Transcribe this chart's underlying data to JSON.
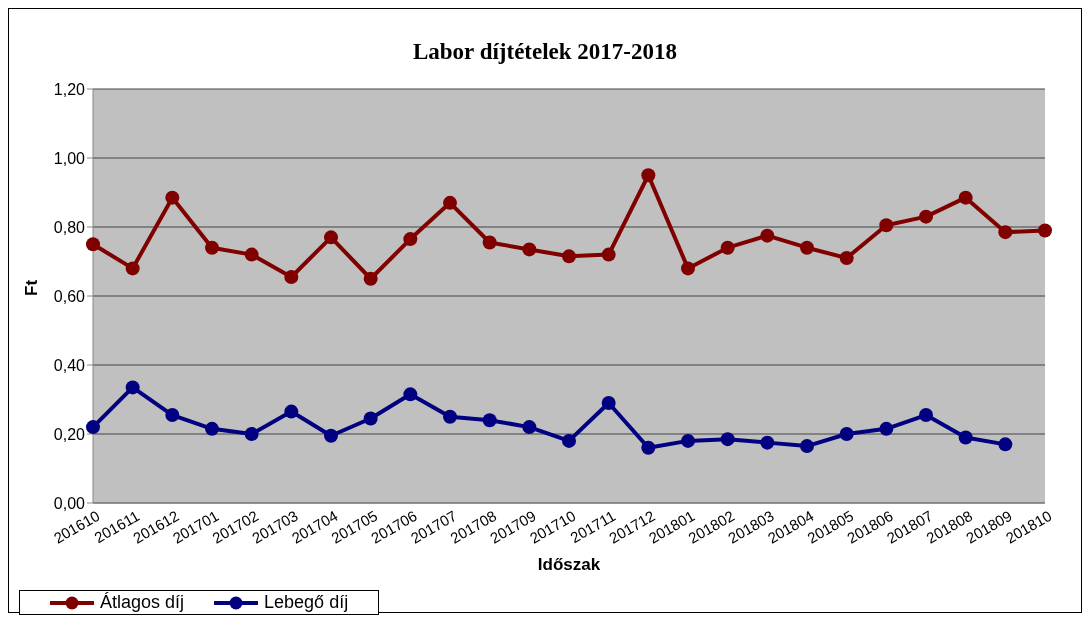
{
  "chart_data": {
    "type": "line",
    "title": "Labor díjtételek 2017-2018",
    "xlabel": "Időszak",
    "ylabel": "Ft",
    "categories": [
      "201610",
      "201611",
      "201612",
      "201701",
      "201702",
      "201703",
      "201704",
      "201705",
      "201706",
      "201707",
      "201708",
      "201709",
      "201710",
      "201711",
      "201712",
      "201801",
      "201802",
      "201803",
      "201804",
      "201805",
      "201806",
      "201807",
      "201808",
      "201809",
      "201810"
    ],
    "series": [
      {
        "name": "Átlagos díj",
        "color": "#800000",
        "values": [
          0.75,
          0.68,
          0.885,
          0.74,
          0.72,
          0.655,
          0.77,
          0.65,
          0.765,
          0.87,
          0.755,
          0.735,
          0.715,
          0.72,
          0.95,
          0.68,
          0.74,
          0.775,
          0.74,
          0.71,
          0.805,
          0.83,
          0.885,
          0.785,
          0.79
        ]
      },
      {
        "name": "Lebegő díj",
        "color": "#000080",
        "values": [
          0.22,
          0.335,
          0.255,
          0.215,
          0.2,
          0.265,
          0.195,
          0.245,
          0.315,
          0.25,
          0.24,
          0.22,
          0.18,
          0.29,
          0.16,
          0.18,
          0.185,
          0.175,
          0.165,
          0.2,
          0.215,
          0.255,
          0.19,
          0.17,
          null
        ]
      }
    ],
    "ylim": [
      0,
      1.2
    ],
    "yticks": [
      {
        "value": 0,
        "label": "0,00"
      },
      {
        "value": 0.2,
        "label": "0,20"
      },
      {
        "value": 0.4,
        "label": "0,40"
      },
      {
        "value": 0.6,
        "label": "0,60"
      },
      {
        "value": 0.8,
        "label": "0,80"
      },
      {
        "value": 1,
        "label": "1,00"
      },
      {
        "value": 1.2,
        "label": "1,20"
      }
    ],
    "grid": "y",
    "legend": "bottom",
    "marker": "circle",
    "line_style": "solid"
  }
}
